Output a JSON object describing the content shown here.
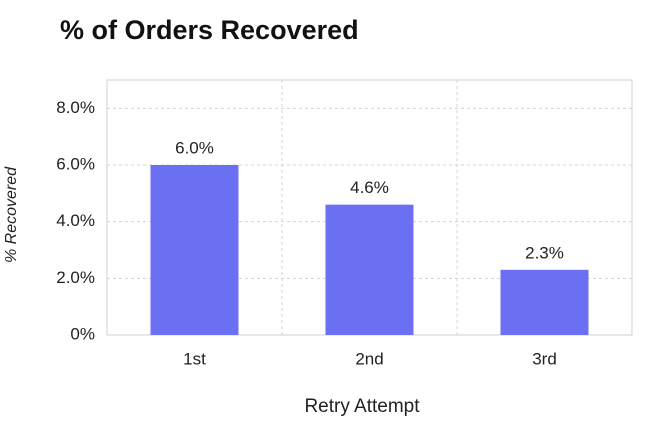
{
  "chart_data": {
    "type": "bar",
    "title": "% of Orders Recovered",
    "x_label": "Retry Attempt",
    "y_label": "% Recovered",
    "categories": [
      "1st",
      "2nd",
      "3rd"
    ],
    "values": [
      6.0,
      4.6,
      2.3
    ],
    "value_labels": [
      "6.0%",
      "4.6%",
      "2.3%"
    ],
    "color": "#6b6ff2",
    "ylim": [
      0,
      9
    ],
    "yticks": [
      {
        "value": 0,
        "label": "0%"
      },
      {
        "value": 2,
        "label": "2.0%"
      },
      {
        "value": 4,
        "label": "4.0%"
      },
      {
        "value": 6,
        "label": "6.0%"
      },
      {
        "value": 8,
        "label": "8.0%"
      }
    ],
    "grid": true
  }
}
